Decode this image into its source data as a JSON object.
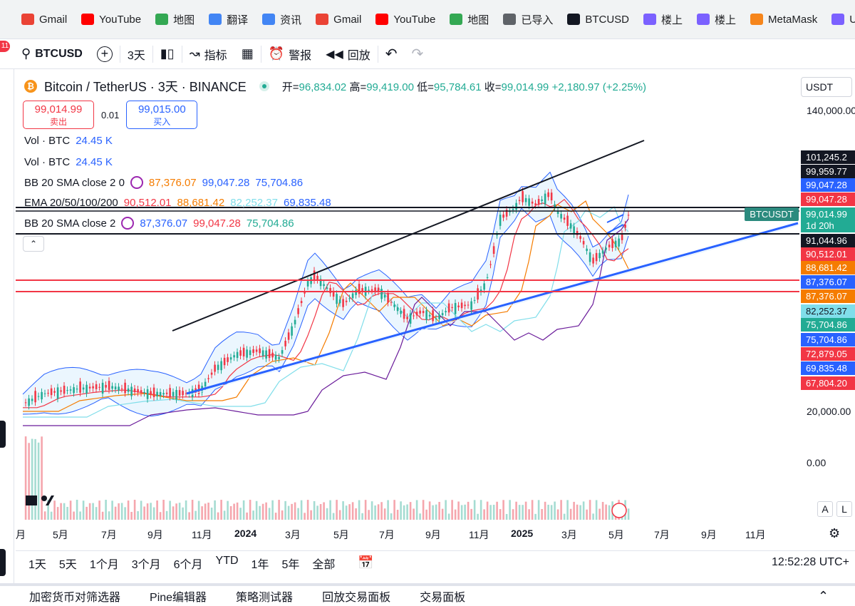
{
  "bookmarks": [
    {
      "label": "Gmail",
      "icon": "gmail-icon",
      "color": "#ea4335"
    },
    {
      "label": "YouTube",
      "icon": "youtube-icon",
      "color": "#ff0000"
    },
    {
      "label": "地图",
      "icon": "maps-icon",
      "color": "#34a853"
    },
    {
      "label": "翻译",
      "icon": "translate-icon",
      "color": "#4285f4"
    },
    {
      "label": "资讯",
      "icon": "news-icon",
      "color": "#4285f4"
    },
    {
      "label": "Gmail",
      "icon": "gmail-icon",
      "color": "#ea4335"
    },
    {
      "label": "YouTube",
      "icon": "youtube-icon",
      "color": "#ff0000"
    },
    {
      "label": "地图",
      "icon": "maps-icon",
      "color": "#34a853"
    },
    {
      "label": "已导入",
      "icon": "folder-icon",
      "color": "#5f6368"
    },
    {
      "label": "BTCUSD",
      "icon": "tradingview-icon",
      "color": "#131722"
    },
    {
      "label": "楼上",
      "icon": "layers-icon",
      "color": "#7b61ff"
    },
    {
      "label": "楼上",
      "icon": "layers-icon",
      "color": "#7b61ff"
    },
    {
      "label": "MetaMask",
      "icon": "metamask-icon",
      "color": "#f6851b"
    },
    {
      "label": "Upst",
      "icon": "layers-icon",
      "color": "#7b61ff"
    }
  ],
  "notif_count": "11",
  "toolbar": {
    "symbol": "BTCUSD",
    "interval": "3天",
    "indicators": "指标",
    "alerts": "警报",
    "replay": "回放"
  },
  "legend": {
    "title": "Bitcoin / TetherUS · 3天 · BINANCE",
    "o_label": "开=",
    "o": "96,834.02",
    "h_label": "高=",
    "h": "99,419.00",
    "l_label": "低=",
    "l": "95,784.61",
    "c_label": "收=",
    "c": "99,014.99",
    "change": "+2,180.97 (+2.25%)",
    "sell_price": "99,014.99",
    "sell_label": "卖出",
    "spread": "0.01",
    "buy_price": "99,015.00",
    "buy_label": "买入"
  },
  "indicators": [
    {
      "name": "Vol · BTC",
      "values": [
        "24.45 K"
      ]
    },
    {
      "name": "Vol · BTC",
      "values": [
        "24.45 K"
      ]
    },
    {
      "name": "BB 20 SMA close 2 0",
      "values": [
        "87,376.07",
        "99,047.28",
        "75,704.86"
      ],
      "colors": [
        "#f57c00",
        "#2962ff",
        "#2962ff"
      ]
    },
    {
      "name": "EMA 20/50/100/200",
      "values": [
        "90,512.01",
        "88,681.42",
        "82,252.37",
        "69,835.48"
      ],
      "colors": [
        "#f23645",
        "#f57c00",
        "#80deea",
        "#2962ff"
      ]
    },
    {
      "name": "BB 20 SMA close 2",
      "values": [
        "87,376.07",
        "99,047.28",
        "75,704.86"
      ],
      "colors": [
        "#2962ff",
        "#f23645",
        "#22ab94"
      ]
    }
  ],
  "currency": "USDT",
  "price_axis": [
    "140,000.00",
    "20,000.00",
    "0.00"
  ],
  "price_labels": [
    {
      "v": "101,245.2",
      "bg": "#131722"
    },
    {
      "v": "99,959.77",
      "bg": "#131722"
    },
    {
      "v": "99,047.28",
      "bg": "#2962ff"
    },
    {
      "v": "99,047.28",
      "bg": "#f23645"
    },
    {
      "v": "99,014.99",
      "bg": "#22ab94"
    },
    {
      "v": "1d 20h",
      "bg": "#22ab94"
    },
    {
      "v": "91,044.96",
      "bg": "#131722"
    },
    {
      "v": "90,512.01",
      "bg": "#f23645"
    },
    {
      "v": "88,681.42",
      "bg": "#f57c00"
    },
    {
      "v": "87,376.07",
      "bg": "#2962ff"
    },
    {
      "v": "87,376.07",
      "bg": "#f57c00"
    },
    {
      "v": "82,252.37",
      "bg": "#80deea"
    },
    {
      "v": "75,704.86",
      "bg": "#22ab94"
    },
    {
      "v": "75,704.86",
      "bg": "#2962ff"
    },
    {
      "v": "72,879.05",
      "bg": "#f23645"
    },
    {
      "v": "69,835.48",
      "bg": "#2962ff"
    },
    {
      "v": "67,804.20",
      "bg": "#f23645"
    }
  ],
  "symbol_tag": "BTCUSDT",
  "time_axis": [
    "月",
    "5月",
    "7月",
    "9月",
    "11月",
    "2024",
    "3月",
    "5月",
    "7月",
    "9月",
    "11月",
    "2025",
    "3月",
    "5月",
    "7月",
    "9月",
    "11月"
  ],
  "ranges": [
    "1天",
    "5天",
    "1个月",
    "3个月",
    "6个月",
    "YTD",
    "1年",
    "5年",
    "全部"
  ],
  "clock": "12:52:28 UTC+",
  "tabs": [
    "加密货币对筛选器",
    "Pine编辑器",
    "策略测试器",
    "回放交易面板",
    "交易面板"
  ],
  "scale_buttons": [
    "A",
    "L"
  ]
}
